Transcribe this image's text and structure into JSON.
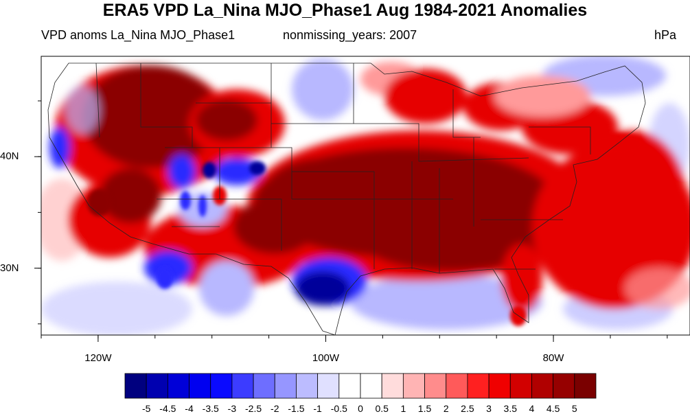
{
  "title": "ERA5 VPD La_Nina MJO_Phase1 Aug 1984-2021 Anomalies",
  "left_label": "VPD anoms La_Nina MJO_Phase1",
  "center_label": "nonmissing_years: 2007",
  "units": "hPa",
  "map": {
    "region": "contiguous-united-states",
    "lon_range": [
      -125,
      -68
    ],
    "lat_range": [
      24,
      49
    ],
    "lon_ticks": [
      {
        "value": -120,
        "label": "120W"
      },
      {
        "value": -100,
        "label": "100W"
      },
      {
        "value": -80,
        "label": "80W"
      }
    ],
    "lat_ticks": [
      {
        "value": 40,
        "label": "40N"
      },
      {
        "value": 30,
        "label": "30N"
      }
    ]
  },
  "colorbar": {
    "labels": [
      "-5",
      "-4.5",
      "-4",
      "-3.5",
      "-3",
      "-2.5",
      "-2",
      "-1.5",
      "-1",
      "-0.5",
      "0",
      "0.5",
      "1",
      "1.5",
      "2",
      "2.5",
      "3",
      "3.5",
      "4",
      "4.5",
      "5"
    ],
    "colors": [
      "#00007f",
      "#0000b0",
      "#0000d8",
      "#0000f0",
      "#0a0aff",
      "#3c3cff",
      "#6e6eff",
      "#9696ff",
      "#bcbcff",
      "#e0e0ff",
      "#ffffff",
      "#ffffff",
      "#ffdcdc",
      "#ffb4b4",
      "#ff8c8c",
      "#ff5a5a",
      "#ff2020",
      "#f00000",
      "#d20000",
      "#b00000",
      "#960000",
      "#7a0000"
    ]
  },
  "anomaly_colors": {
    "strong_positive": "#8b0000",
    "positive": "#e60000",
    "weak_positive": "#ff9a9a",
    "weak_negative": "#b8b8ff",
    "negative": "#2a2aff",
    "strong_negative": "#00009a"
  }
}
